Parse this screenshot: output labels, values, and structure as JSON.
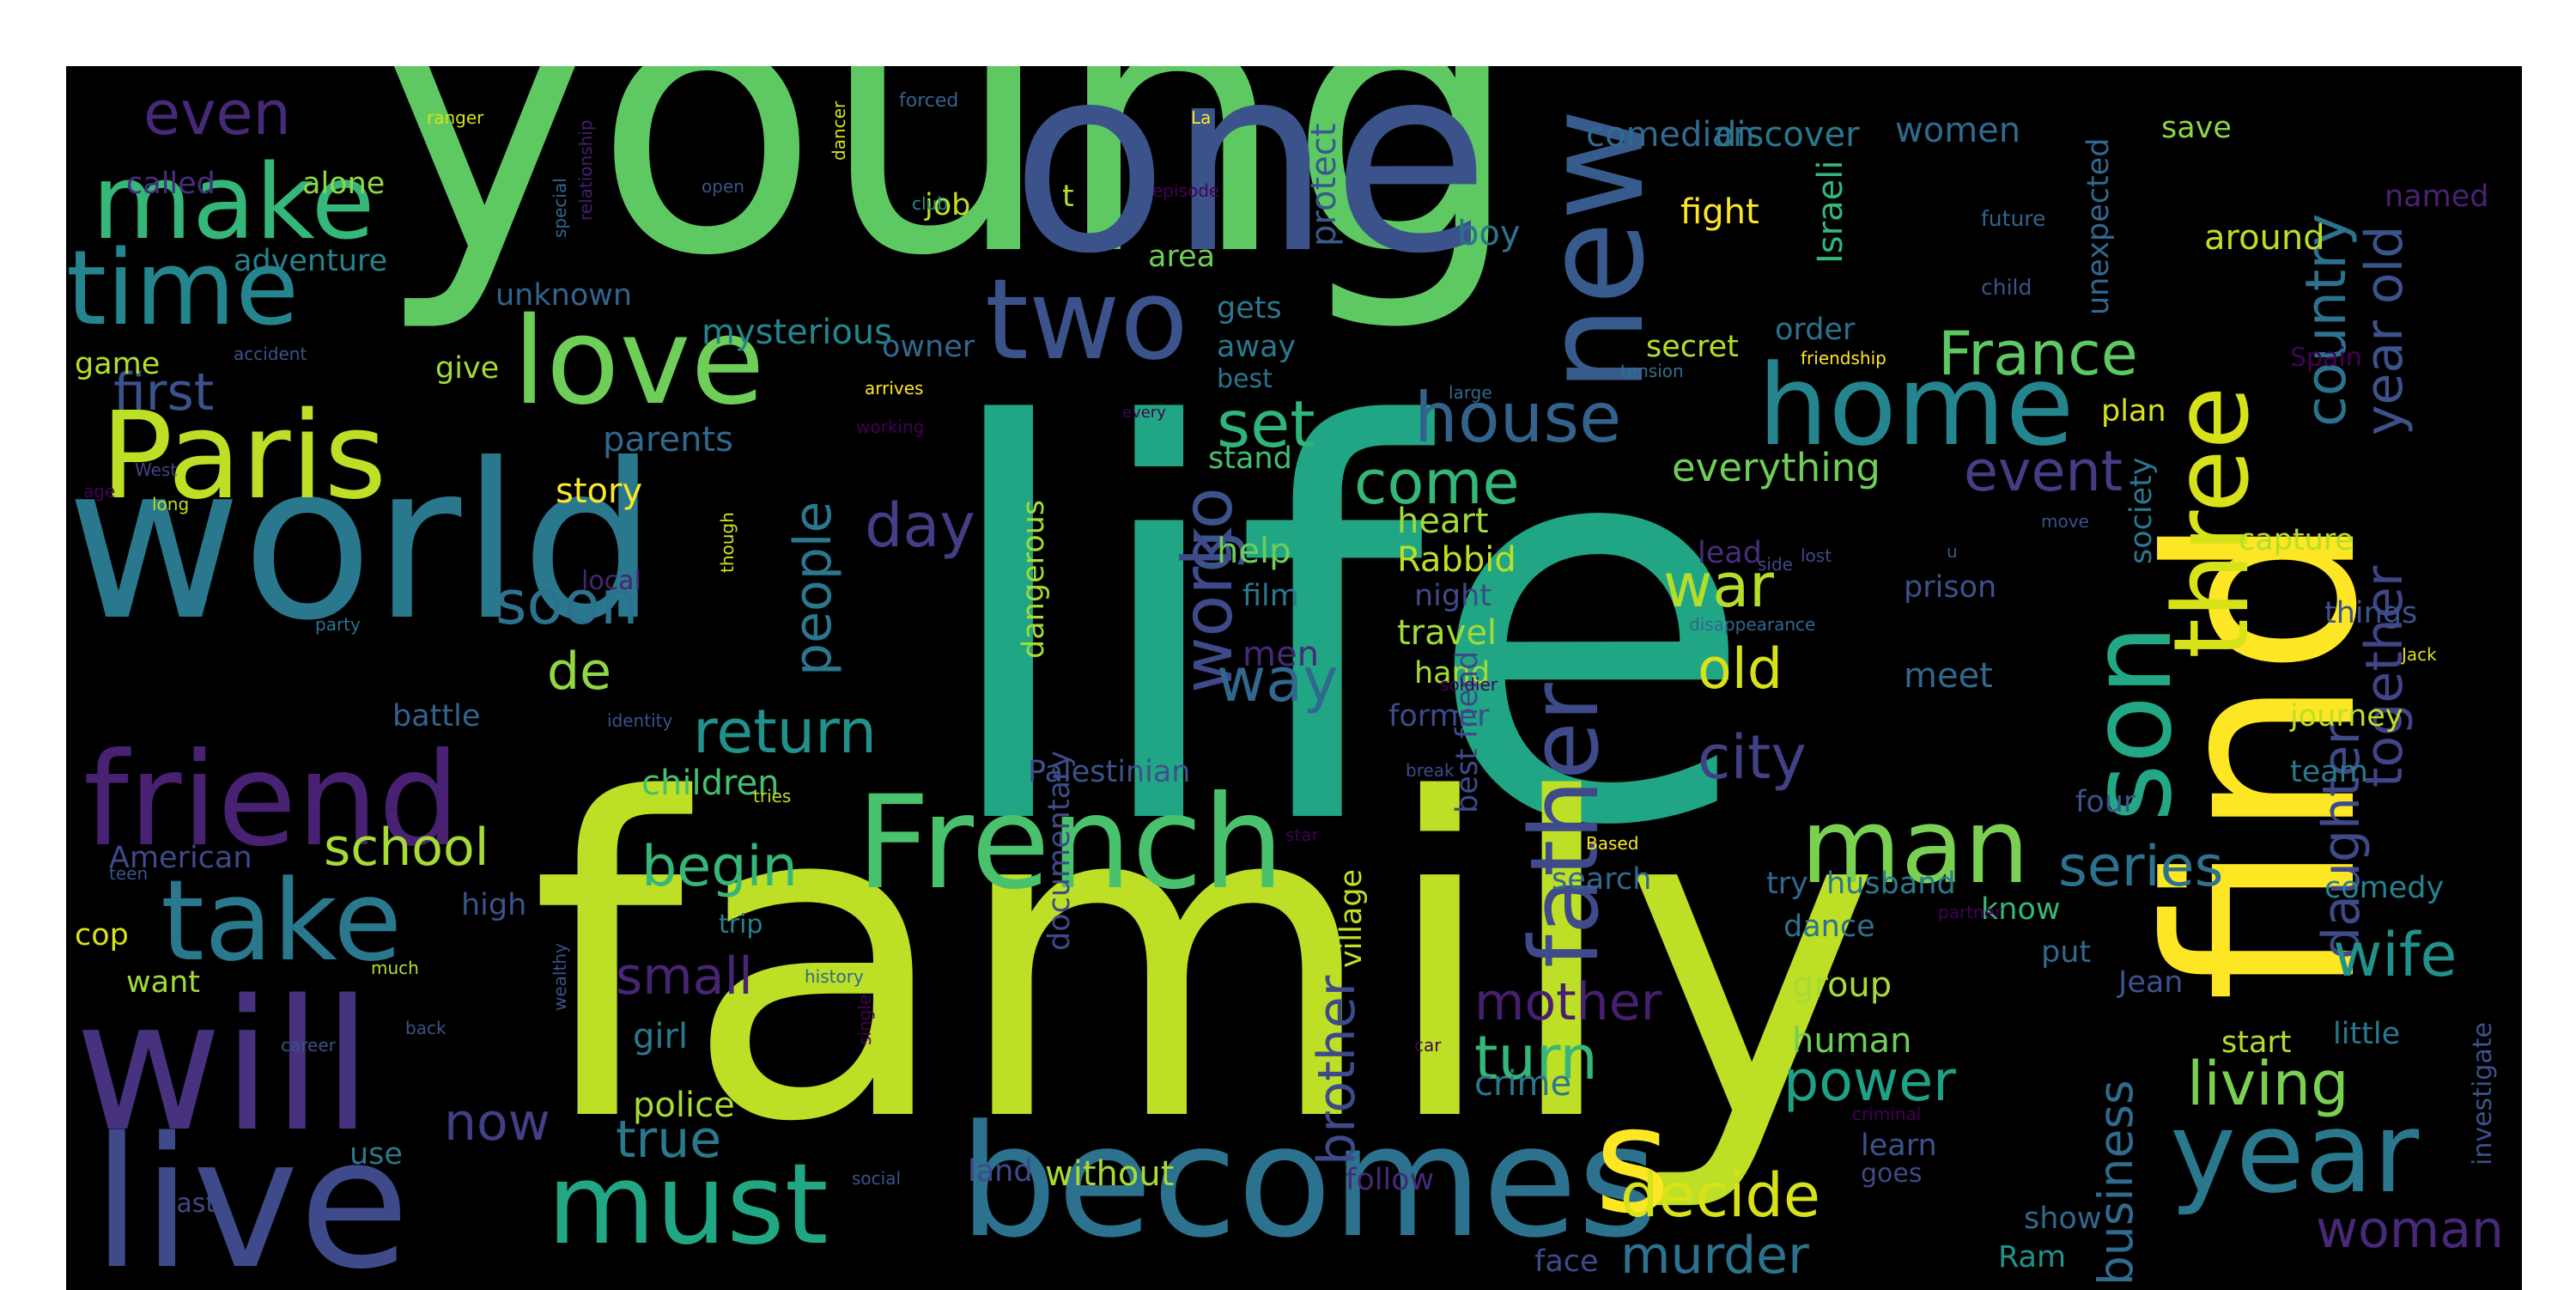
{
  "colors": {
    "background": "#000000",
    "page": "#ffffff"
  },
  "words": [
    {
      "text": "young",
      "color": "#5ec962"
    },
    {
      "text": "one",
      "color": "#3b528b"
    },
    {
      "text": "life",
      "color": "#21a685"
    },
    {
      "text": "family",
      "color": "#bddf26"
    },
    {
      "text": "world",
      "color": "#2a788e"
    },
    {
      "text": "find",
      "color": "#fde725"
    },
    {
      "text": "will",
      "color": "#46327e"
    },
    {
      "text": "live",
      "color": "#3e4a89"
    },
    {
      "text": "becomes",
      "color": "#2c728e"
    },
    {
      "text": "French",
      "color": "#4ac16d"
    },
    {
      "text": "friend",
      "color": "#482173"
    },
    {
      "text": "new",
      "color": "#375b8d"
    },
    {
      "text": "Paris",
      "color": "#bddf26"
    },
    {
      "text": "love",
      "color": "#6ece58"
    },
    {
      "text": "two",
      "color": "#3b528b"
    },
    {
      "text": "home",
      "color": "#25858e"
    },
    {
      "text": "take",
      "color": "#2a788e"
    },
    {
      "text": "must",
      "color": "#22a785"
    },
    {
      "text": "make",
      "color": "#35b779"
    },
    {
      "text": "time",
      "color": "#25858e"
    },
    {
      "text": "man",
      "color": "#7ad151"
    },
    {
      "text": "year",
      "color": "#2a788e"
    },
    {
      "text": "son",
      "color": "#22a884"
    },
    {
      "text": "three",
      "color": "#d8e219"
    },
    {
      "text": "father",
      "color": "#3e4a89"
    },
    {
      "text": "s",
      "color": "#fde725"
    },
    {
      "text": "even",
      "color": "#482979"
    },
    {
      "text": "first",
      "color": "#3b528b"
    },
    {
      "text": "France",
      "color": "#5ec962"
    },
    {
      "text": "country",
      "color": "#2c728e"
    },
    {
      "text": "year old",
      "color": "#3b528b"
    },
    {
      "text": "house",
      "color": "#33638d"
    },
    {
      "text": "come",
      "color": "#35b779"
    },
    {
      "text": "set",
      "color": "#2fb47c"
    },
    {
      "text": "day",
      "color": "#433e85"
    },
    {
      "text": "go",
      "color": "#3b528b"
    },
    {
      "text": "work",
      "color": "#3e4a89"
    },
    {
      "text": "way",
      "color": "#31688e"
    },
    {
      "text": "people",
      "color": "#2a788e"
    },
    {
      "text": "soon",
      "color": "#2c728e"
    },
    {
      "text": "de",
      "color": "#90d743"
    },
    {
      "text": "return",
      "color": "#21918c"
    },
    {
      "text": "event",
      "color": "#433e85"
    },
    {
      "text": "war",
      "color": "#b5de2b"
    },
    {
      "text": "city",
      "color": "#424086"
    },
    {
      "text": "old",
      "color": "#d8e219"
    },
    {
      "text": "daughter",
      "color": "#3e4a89"
    },
    {
      "text": "together",
      "color": "#414487"
    },
    {
      "text": "mother",
      "color": "#481f70"
    },
    {
      "text": "series",
      "color": "#2c728e"
    },
    {
      "text": "wife",
      "color": "#21918c"
    },
    {
      "text": "living",
      "color": "#7ad151"
    },
    {
      "text": "woman",
      "color": "#482878"
    },
    {
      "text": "decide",
      "color": "#d8e219"
    },
    {
      "text": "murder",
      "color": "#2c728e"
    },
    {
      "text": "school",
      "color": "#a8db34"
    },
    {
      "text": "begin",
      "color": "#35b779"
    },
    {
      "text": "small",
      "color": "#482475"
    },
    {
      "text": "turn",
      "color": "#35b779"
    },
    {
      "text": "power",
      "color": "#1fa187"
    },
    {
      "text": "now",
      "color": "#423f85"
    },
    {
      "text": "true",
      "color": "#2a788e"
    },
    {
      "text": "brother",
      "color": "#3e4a89"
    },
    {
      "text": "business",
      "color": "#306a8e"
    },
    {
      "text": "everything",
      "color": "#6ece58"
    },
    {
      "text": "story",
      "color": "#fde725"
    },
    {
      "text": "parents",
      "color": "#31688e"
    },
    {
      "text": "mysterious",
      "color": "#25858e"
    },
    {
      "text": "adventure",
      "color": "#26828e"
    },
    {
      "text": "unknown",
      "color": "#33638d"
    },
    {
      "text": "called",
      "color": "#472d7b"
    },
    {
      "text": "alone",
      "color": "#90d743"
    },
    {
      "text": "game",
      "color": "#b5de2b"
    },
    {
      "text": "give",
      "color": "#a2da37"
    },
    {
      "text": "job",
      "color": "#bddf26"
    },
    {
      "text": "t",
      "color": "#b5de2b"
    },
    {
      "text": "area",
      "color": "#6ece58"
    },
    {
      "text": "protect",
      "color": "#375b8d"
    },
    {
      "text": "boy",
      "color": "#2c728e"
    },
    {
      "text": "fight",
      "color": "#fde725"
    },
    {
      "text": "Israeli",
      "color": "#35b779"
    },
    {
      "text": "around",
      "color": "#bddf26"
    },
    {
      "text": "named",
      "color": "#482374"
    },
    {
      "text": "comedian",
      "color": "#306a8e"
    },
    {
      "text": "discover",
      "color": "#2a788e"
    },
    {
      "text": "women",
      "color": "#31688e"
    },
    {
      "text": "save",
      "color": "#8ed645"
    },
    {
      "text": "unexpected",
      "color": "#31688e"
    },
    {
      "text": "future",
      "color": "#33638d"
    },
    {
      "text": "child",
      "color": "#3b528b"
    },
    {
      "text": "order",
      "color": "#2c728e"
    },
    {
      "text": "secret",
      "color": "#b5de2b"
    },
    {
      "text": "Spain",
      "color": "#440154"
    },
    {
      "text": "plan",
      "color": "#d8e219"
    },
    {
      "text": "gets",
      "color": "#2a788e"
    },
    {
      "text": "away",
      "color": "#2a788e"
    },
    {
      "text": "best",
      "color": "#2c728e"
    },
    {
      "text": "stand",
      "color": "#44bf70"
    },
    {
      "text": "owner",
      "color": "#31688e"
    },
    {
      "text": "heart",
      "color": "#a2da37"
    },
    {
      "text": "Rabbid",
      "color": "#bddf26"
    },
    {
      "text": "help",
      "color": "#6ece58"
    },
    {
      "text": "film",
      "color": "#2a788e"
    },
    {
      "text": "men",
      "color": "#482878"
    },
    {
      "text": "night",
      "color": "#3e4a89"
    },
    {
      "text": "travel",
      "color": "#a2da37"
    },
    {
      "text": "hand",
      "color": "#a8db34"
    },
    {
      "text": "former",
      "color": "#3e4a89"
    },
    {
      "text": "local",
      "color": "#482475"
    },
    {
      "text": "battle",
      "color": "#33638d"
    },
    {
      "text": "children",
      "color": "#46c06f"
    },
    {
      "text": "Palestinian",
      "color": "#3b528b"
    },
    {
      "text": "American",
      "color": "#3e4a89"
    },
    {
      "text": "high",
      "color": "#3b528b"
    },
    {
      "text": "cop",
      "color": "#d8e219"
    },
    {
      "text": "want",
      "color": "#a2da37"
    },
    {
      "text": "trip",
      "color": "#26828e"
    },
    {
      "text": "girl",
      "color": "#2a788e"
    },
    {
      "text": "police",
      "color": "#a8db34"
    },
    {
      "text": "use",
      "color": "#2a788e"
    },
    {
      "text": "last",
      "color": "#3e4a89"
    },
    {
      "text": "dangerous",
      "color": "#a5db36"
    },
    {
      "text": "documentary",
      "color": "#3e4a89"
    },
    {
      "text": "village",
      "color": "#bddf26"
    },
    {
      "text": "best friend",
      "color": "#3e4a89"
    },
    {
      "text": "search",
      "color": "#31688e"
    },
    {
      "text": "dance",
      "color": "#2c728e"
    },
    {
      "text": "group",
      "color": "#a8db34"
    },
    {
      "text": "human",
      "color": "#6ece58"
    },
    {
      "text": "crime",
      "color": "#2a788e"
    },
    {
      "text": "without",
      "color": "#a8db34"
    },
    {
      "text": "follow",
      "color": "#482878"
    },
    {
      "text": "land",
      "color": "#3e4a89"
    },
    {
      "text": "face",
      "color": "#3e4a89"
    },
    {
      "text": "lead",
      "color": "#472d7b"
    },
    {
      "text": "prison",
      "color": "#3b528b"
    },
    {
      "text": "meet",
      "color": "#31688e"
    },
    {
      "text": "society",
      "color": "#2a788e"
    },
    {
      "text": "capture",
      "color": "#b5de2b"
    },
    {
      "text": "things",
      "color": "#3b528b"
    },
    {
      "text": "journey",
      "color": "#bddf26"
    },
    {
      "text": "team",
      "color": "#2a788e"
    },
    {
      "text": "four",
      "color": "#3b528b"
    },
    {
      "text": "comedy",
      "color": "#26828e"
    },
    {
      "text": "try",
      "color": "#31688e"
    },
    {
      "text": "husband",
      "color": "#2a788e"
    },
    {
      "text": "know",
      "color": "#35b779"
    },
    {
      "text": "put",
      "color": "#31688e"
    },
    {
      "text": "Jean",
      "color": "#3b528b"
    },
    {
      "text": "start",
      "color": "#b5de2b"
    },
    {
      "text": "little",
      "color": "#2a788e"
    },
    {
      "text": "investigate",
      "color": "#3b528b"
    },
    {
      "text": "learn",
      "color": "#3b528b"
    },
    {
      "text": "goes",
      "color": "#3e4a89"
    },
    {
      "text": "show",
      "color": "#31688e"
    },
    {
      "text": "Ram",
      "color": "#21918c"
    },
    {
      "text": "ranger",
      "color": "#d8e219"
    },
    {
      "text": "relationship",
      "color": "#481f70"
    },
    {
      "text": "special",
      "color": "#31688e"
    },
    {
      "text": "forced",
      "color": "#33638d"
    },
    {
      "text": "La",
      "color": "#fde725"
    },
    {
      "text": "open",
      "color": "#3b528b"
    },
    {
      "text": "dancer",
      "color": "#d8e219"
    },
    {
      "text": "episode",
      "color": "#440154"
    },
    {
      "text": "club",
      "color": "#21918c"
    },
    {
      "text": "accident",
      "color": "#3b528b"
    },
    {
      "text": "arrives",
      "color": "#fde725"
    },
    {
      "text": "working",
      "color": "#440154"
    },
    {
      "text": "every",
      "color": "#440154"
    },
    {
      "text": "large",
      "color": "#31688e"
    },
    {
      "text": "friendship",
      "color": "#fde725"
    },
    {
      "text": "tension",
      "color": "#2c728e"
    },
    {
      "text": "West",
      "color": "#414487"
    },
    {
      "text": "long",
      "color": "#bddf26"
    },
    {
      "text": "age",
      "color": "#440154"
    },
    {
      "text": "though",
      "color": "#d8e219"
    },
    {
      "text": "side",
      "color": "#3e4a89"
    },
    {
      "text": "lost",
      "color": "#3e4a89"
    },
    {
      "text": "u",
      "color": "#3b528b"
    },
    {
      "text": "move",
      "color": "#3b528b"
    },
    {
      "text": "disappearance",
      "color": "#31688e"
    },
    {
      "text": "party",
      "color": "#2c728e"
    },
    {
      "text": "identity",
      "color": "#3b528b"
    },
    {
      "text": "soldier",
      "color": "#440154"
    },
    {
      "text": "Jack",
      "color": "#d8e219"
    },
    {
      "text": "break",
      "color": "#3e4a89"
    },
    {
      "text": "tries",
      "color": "#bddf26"
    },
    {
      "text": "teen",
      "color": "#3b528b"
    },
    {
      "text": "star",
      "color": "#440154"
    },
    {
      "text": "Based",
      "color": "#fde725"
    },
    {
      "text": "partner",
      "color": "#440154"
    },
    {
      "text": "criminal",
      "color": "#440154"
    },
    {
      "text": "history",
      "color": "#31688e"
    },
    {
      "text": "much",
      "color": "#b5de2b"
    },
    {
      "text": "wealthy",
      "color": "#3b528b"
    },
    {
      "text": "back",
      "color": "#3b528b"
    },
    {
      "text": "career",
      "color": "#3b528b"
    },
    {
      "text": "single",
      "color": "#440154"
    },
    {
      "text": "car",
      "color": "#440154"
    },
    {
      "text": "social",
      "color": "#3b528b"
    }
  ]
}
